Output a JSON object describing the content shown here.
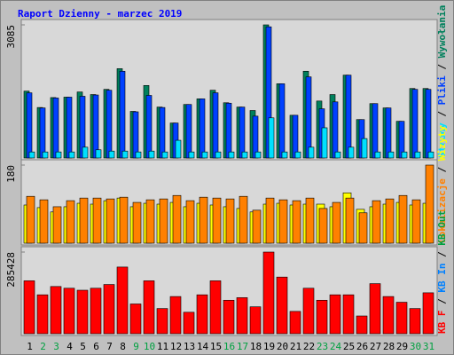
{
  "chart_data": [
    {
      "type": "bar",
      "title": "Raport Dzienny -  marzec 2019",
      "ylim": [
        0,
        3085
      ],
      "yticks": [
        3085
      ],
      "series": [
        {
          "name": "Wywołania",
          "color": "#00805c",
          "values": [
            1550,
            1170,
            1400,
            1410,
            1530,
            1470,
            1590,
            2070,
            1080,
            1680,
            1180,
            810,
            1240,
            1370,
            1570,
            1280,
            1180,
            1100,
            3085,
            1720,
            990,
            2010,
            1320,
            1470,
            1920,
            890,
            1260,
            1160,
            850,
            1610,
            1610
          ]
        },
        {
          "name": "Pliki",
          "color": "#0040ff",
          "values": [
            1510,
            1160,
            1390,
            1410,
            1430,
            1460,
            1570,
            2010,
            1070,
            1450,
            1170,
            810,
            1240,
            1370,
            1510,
            1270,
            1180,
            970,
            3040,
            1720,
            990,
            1880,
            1140,
            1300,
            1920,
            890,
            1260,
            1160,
            850,
            1590,
            1590
          ]
        },
        {
          "name": "Strony",
          "color": "#00e0ff",
          "values": [
            140,
            140,
            140,
            140,
            250,
            190,
            160,
            160,
            140,
            160,
            140,
            410,
            140,
            140,
            140,
            140,
            140,
            140,
            930,
            140,
            140,
            250,
            700,
            140,
            250,
            450,
            140,
            140,
            140,
            140,
            140
          ]
        }
      ]
    },
    {
      "type": "bar",
      "ylim": [
        0,
        180
      ],
      "yticks": [
        180
      ],
      "series": [
        {
          "name": "Wizyty",
          "color": "#ffff00",
          "values": [
            88,
            82,
            72,
            84,
            92,
            90,
            98,
            104,
            84,
            92,
            90,
            94,
            84,
            92,
            88,
            84,
            80,
            72,
            90,
            92,
            88,
            90,
            90,
            84,
            116,
            78,
            84,
            90,
            94,
            88,
            92
          ]
        },
        {
          "name": "Lokalizacje",
          "color": "#ff8000",
          "values": [
            108,
            100,
            84,
            98,
            104,
            104,
            102,
            106,
            94,
            100,
            102,
            110,
            98,
            106,
            104,
            102,
            108,
            76,
            104,
            100,
            98,
            104,
            80,
            94,
            104,
            70,
            98,
            102,
            110,
            100,
            180
          ]
        }
      ]
    },
    {
      "type": "bar",
      "ylim": [
        0,
        285428
      ],
      "yticks": [
        285428
      ],
      "categories": [
        "1",
        "2",
        "3",
        "4",
        "5",
        "6",
        "7",
        "8",
        "9",
        "10",
        "11",
        "12",
        "13",
        "14",
        "15",
        "16",
        "17",
        "18",
        "19",
        "20",
        "21",
        "22",
        "23",
        "24",
        "25",
        "26",
        "27",
        "28",
        "29",
        "30",
        "31"
      ],
      "category_colors": [
        "#000",
        "#00a040",
        "#00a040",
        "#000",
        "#000",
        "#000",
        "#000",
        "#000",
        "#00a040",
        "#00a040",
        "#000",
        "#000",
        "#000",
        "#000",
        "#000",
        "#00a040",
        "#00a040",
        "#000",
        "#000",
        "#000",
        "#000",
        "#000",
        "#00a040",
        "#00a040",
        "#000",
        "#000",
        "#000",
        "#000",
        "#000",
        "#00a040",
        "#00a040"
      ],
      "series": [
        {
          "name": "KB Out",
          "color": "#00a040"
        },
        {
          "name": "KB In",
          "color": "#0080ff"
        },
        {
          "name": "KB F",
          "color": "#ff0000",
          "values": [
            185000,
            136000,
            165000,
            159000,
            152000,
            159000,
            172000,
            233000,
            104000,
            185000,
            88000,
            130000,
            75000,
            136000,
            185000,
            117000,
            126000,
            94000,
            285428,
            198000,
            78000,
            159000,
            117000,
            136000,
            136000,
            62000,
            175000,
            130000,
            110000,
            88000,
            143000
          ]
        }
      ]
    }
  ],
  "separator": " / "
}
